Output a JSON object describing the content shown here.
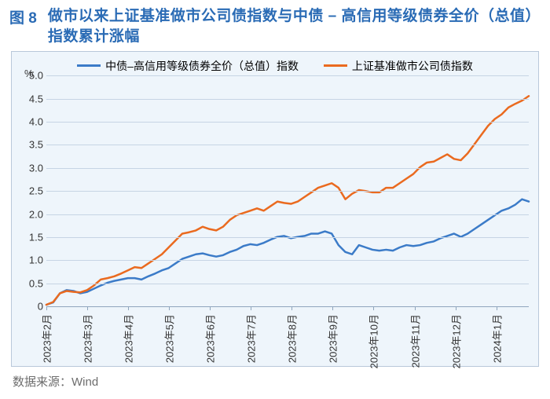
{
  "figure_label": "图 8",
  "figure_title": "做市以来上证基准做市公司债指数与中债 – 高信用等级债券全价（总值）指数累计涨幅",
  "source_label": "数据来源：",
  "source_value": "Wind",
  "chart": {
    "type": "line",
    "background_color": "#eef5fb",
    "border_color": "#b9c8da",
    "grid_color": "#c6d4e4",
    "axis_color": "#8fa5bd",
    "y_unit": "%",
    "ylim": [
      0,
      5.0
    ],
    "yticks": [
      0,
      0.5,
      1.0,
      1.5,
      2.0,
      2.5,
      3.0,
      3.5,
      4.0,
      4.5,
      5.0
    ],
    "ytick_labels": [
      "0",
      "0.5",
      "1.0",
      "1.5",
      "2.0",
      "2.5",
      "3.0",
      "3.5",
      "4.0",
      "4.5",
      "5.0"
    ],
    "xticks": [
      "2023年2月",
      "2023年3月",
      "2023年4月",
      "2023年5月",
      "2023年6月",
      "2023年7月",
      "2023年8月",
      "2023年9月",
      "2023年10月",
      "2023年11月",
      "2023年12月",
      "2024年1月"
    ],
    "line_width": 2.5,
    "label_fontsize": 13,
    "legend_fontsize": 14,
    "series": [
      {
        "name": "中债–高信用等级债券全价（总值）指数",
        "color": "#3b7bc8",
        "data": [
          0.0,
          0.05,
          0.25,
          0.32,
          0.3,
          0.25,
          0.28,
          0.35,
          0.42,
          0.48,
          0.52,
          0.55,
          0.58,
          0.58,
          0.55,
          0.62,
          0.68,
          0.75,
          0.8,
          0.9,
          1.0,
          1.05,
          1.1,
          1.12,
          1.08,
          1.05,
          1.08,
          1.15,
          1.2,
          1.28,
          1.32,
          1.3,
          1.35,
          1.42,
          1.48,
          1.5,
          1.45,
          1.48,
          1.5,
          1.55,
          1.55,
          1.6,
          1.55,
          1.3,
          1.15,
          1.1,
          1.3,
          1.25,
          1.2,
          1.18,
          1.2,
          1.18,
          1.25,
          1.3,
          1.28,
          1.3,
          1.35,
          1.38,
          1.45,
          1.5,
          1.55,
          1.48,
          1.55,
          1.65,
          1.75,
          1.85,
          1.95,
          2.05,
          2.1,
          2.18,
          2.3,
          2.25
        ]
      },
      {
        "name": "上证基准做市公司债指数",
        "color": "#ea6a1f",
        "data": [
          0.0,
          0.06,
          0.25,
          0.3,
          0.28,
          0.27,
          0.32,
          0.42,
          0.55,
          0.58,
          0.62,
          0.68,
          0.75,
          0.82,
          0.8,
          0.9,
          1.0,
          1.1,
          1.25,
          1.4,
          1.55,
          1.58,
          1.62,
          1.7,
          1.65,
          1.62,
          1.7,
          1.85,
          1.95,
          2.0,
          2.05,
          2.1,
          2.05,
          2.15,
          2.25,
          2.22,
          2.2,
          2.25,
          2.35,
          2.45,
          2.55,
          2.6,
          2.65,
          2.55,
          2.3,
          2.42,
          2.5,
          2.48,
          2.45,
          2.45,
          2.55,
          2.55,
          2.65,
          2.75,
          2.85,
          3.0,
          3.1,
          3.12,
          3.2,
          3.28,
          3.18,
          3.15,
          3.3,
          3.5,
          3.7,
          3.9,
          4.05,
          4.15,
          4.3,
          4.38,
          4.45,
          4.55
        ]
      }
    ]
  }
}
